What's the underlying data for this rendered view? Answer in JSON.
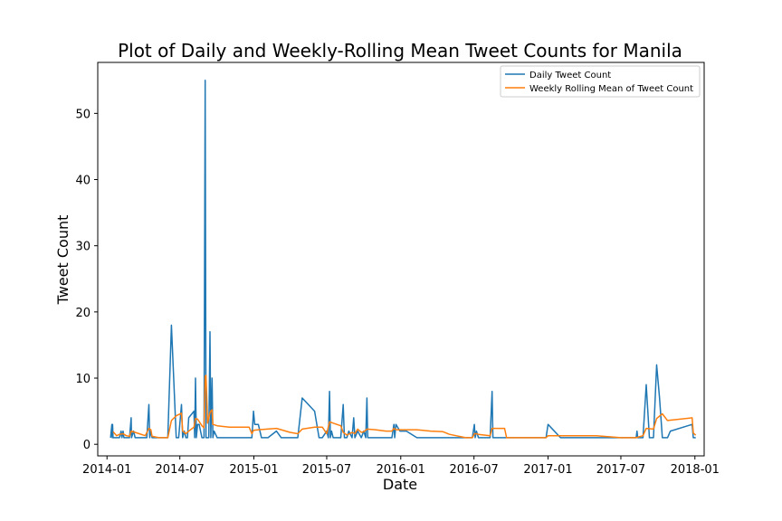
{
  "chart_data": {
    "type": "line",
    "title": "Plot of Daily and Weekly-Rolling Mean Tweet Counts for Manila",
    "xlabel": "Date",
    "ylabel": "Tweet Count",
    "xlim": [
      "2013-12-09",
      "2018-01-24"
    ],
    "ylim": [
      -1.75,
      57.7
    ],
    "x_ticks": [
      "2014-01-01",
      "2014-07-01",
      "2015-01-01",
      "2015-07-01",
      "2016-01-01",
      "2016-07-01",
      "2017-01-01",
      "2017-07-01",
      "2018-01-01"
    ],
    "x_tick_labels": [
      "2014-01",
      "2014-07",
      "2015-01",
      "2015-07",
      "2016-01",
      "2016-07",
      "2017-01",
      "2017-07",
      "2018-01"
    ],
    "y_ticks": [
      0,
      10,
      20,
      30,
      40,
      50
    ],
    "y_tick_labels": [
      "0",
      "10",
      "20",
      "30",
      "40",
      "50"
    ],
    "legend": {
      "placement": "upper right"
    },
    "grid": false,
    "series": [
      {
        "name": "Daily Tweet Count",
        "color": "#1f77b4",
        "points": [
          [
            "2014-01-10",
            1
          ],
          [
            "2014-01-13",
            3
          ],
          [
            "2014-01-14",
            1
          ],
          [
            "2014-01-15",
            3
          ],
          [
            "2014-01-16",
            1
          ],
          [
            "2014-01-25",
            1
          ],
          [
            "2014-02-01",
            1
          ],
          [
            "2014-02-05",
            2
          ],
          [
            "2014-02-07",
            1
          ],
          [
            "2014-02-10",
            2
          ],
          [
            "2014-02-12",
            1
          ],
          [
            "2014-02-18",
            1
          ],
          [
            "2014-02-26",
            1
          ],
          [
            "2014-03-02",
            4
          ],
          [
            "2014-03-03",
            1
          ],
          [
            "2014-03-08",
            2
          ],
          [
            "2014-03-12",
            1
          ],
          [
            "2014-03-22",
            1
          ],
          [
            "2014-04-06",
            1
          ],
          [
            "2014-04-10",
            1
          ],
          [
            "2014-04-15",
            6
          ],
          [
            "2014-04-17",
            1
          ],
          [
            "2014-04-20",
            2
          ],
          [
            "2014-04-23",
            1
          ],
          [
            "2014-05-10",
            1
          ],
          [
            "2014-06-01",
            1
          ],
          [
            "2014-06-10",
            18
          ],
          [
            "2014-06-22",
            1
          ],
          [
            "2014-06-28",
            1
          ],
          [
            "2014-07-05",
            6
          ],
          [
            "2014-07-08",
            1
          ],
          [
            "2014-07-12",
            2
          ],
          [
            "2014-07-16",
            1
          ],
          [
            "2014-07-20",
            1
          ],
          [
            "2014-07-23",
            4
          ],
          [
            "2014-08-05",
            5
          ],
          [
            "2014-08-07",
            1
          ],
          [
            "2014-08-09",
            10
          ],
          [
            "2014-08-11",
            1
          ],
          [
            "2014-08-14",
            3
          ],
          [
            "2014-08-18",
            3
          ],
          [
            "2014-08-25",
            1
          ],
          [
            "2014-08-30",
            1
          ],
          [
            "2014-09-02",
            55
          ],
          [
            "2014-09-04",
            1
          ],
          [
            "2014-09-08",
            1
          ],
          [
            "2014-09-11",
            1
          ],
          [
            "2014-09-14",
            17
          ],
          [
            "2014-09-16",
            1
          ],
          [
            "2014-09-19",
            10
          ],
          [
            "2014-09-21",
            1
          ],
          [
            "2014-09-24",
            2
          ],
          [
            "2014-10-02",
            1
          ],
          [
            "2014-11-01",
            1
          ],
          [
            "2014-12-20",
            1
          ],
          [
            "2014-12-27",
            1
          ],
          [
            "2014-12-31",
            5
          ],
          [
            "2015-01-03",
            3
          ],
          [
            "2015-01-12",
            3
          ],
          [
            "2015-01-20",
            1
          ],
          [
            "2015-02-05",
            1
          ],
          [
            "2015-02-26",
            2
          ],
          [
            "2015-03-10",
            1
          ],
          [
            "2015-04-01",
            1
          ],
          [
            "2015-04-20",
            1
          ],
          [
            "2015-05-01",
            7
          ],
          [
            "2015-06-01",
            5
          ],
          [
            "2015-06-12",
            1
          ],
          [
            "2015-06-20",
            1
          ],
          [
            "2015-07-01",
            2
          ],
          [
            "2015-07-05",
            1
          ],
          [
            "2015-07-08",
            8
          ],
          [
            "2015-07-10",
            1
          ],
          [
            "2015-07-13",
            2
          ],
          [
            "2015-07-17",
            1
          ],
          [
            "2015-08-05",
            1
          ],
          [
            "2015-08-11",
            6
          ],
          [
            "2015-08-14",
            1
          ],
          [
            "2015-08-20",
            1
          ],
          [
            "2015-08-25",
            2
          ],
          [
            "2015-09-02",
            1
          ],
          [
            "2015-09-06",
            4
          ],
          [
            "2015-09-09",
            1
          ],
          [
            "2015-09-16",
            2
          ],
          [
            "2015-09-25",
            1
          ],
          [
            "2015-10-01",
            2
          ],
          [
            "2015-10-06",
            1
          ],
          [
            "2015-10-09",
            7
          ],
          [
            "2015-10-11",
            1
          ],
          [
            "2015-10-30",
            1
          ],
          [
            "2015-11-25",
            1
          ],
          [
            "2015-12-10",
            1
          ],
          [
            "2015-12-15",
            3
          ],
          [
            "2015-12-17",
            1
          ],
          [
            "2015-12-20",
            3
          ],
          [
            "2015-12-30",
            2
          ],
          [
            "2016-01-15",
            2
          ],
          [
            "2016-02-10",
            1
          ],
          [
            "2016-03-15",
            1
          ],
          [
            "2016-05-01",
            1
          ],
          [
            "2016-06-10",
            1
          ],
          [
            "2016-06-27",
            1
          ],
          [
            "2016-07-02",
            3
          ],
          [
            "2016-07-04",
            1
          ],
          [
            "2016-07-07",
            2
          ],
          [
            "2016-07-12",
            1
          ],
          [
            "2016-08-10",
            1
          ],
          [
            "2016-08-15",
            8
          ],
          [
            "2016-08-17",
            1
          ],
          [
            "2016-08-25",
            1
          ],
          [
            "2016-11-01",
            1
          ],
          [
            "2016-12-01",
            1
          ],
          [
            "2016-12-27",
            1
          ],
          [
            "2017-01-01",
            3
          ],
          [
            "2017-02-01",
            1
          ],
          [
            "2017-03-01",
            1
          ],
          [
            "2017-05-01",
            1
          ],
          [
            "2017-07-01",
            1
          ],
          [
            "2017-08-08",
            1
          ],
          [
            "2017-08-10",
            2
          ],
          [
            "2017-08-12",
            1
          ],
          [
            "2017-08-25",
            1
          ],
          [
            "2017-09-02",
            9
          ],
          [
            "2017-09-10",
            1
          ],
          [
            "2017-09-20",
            1
          ],
          [
            "2017-09-28",
            12
          ],
          [
            "2017-10-05",
            7
          ],
          [
            "2017-10-12",
            1
          ],
          [
            "2017-10-25",
            1
          ],
          [
            "2017-11-01",
            2
          ],
          [
            "2017-12-25",
            3
          ],
          [
            "2017-12-28",
            1
          ],
          [
            "2018-01-03",
            1
          ]
        ]
      },
      {
        "name": "Weekly Rolling Mean of Tweet Count",
        "color": "#ff7f0e",
        "points": [
          [
            "2014-01-16",
            1.9
          ],
          [
            "2014-01-25",
            1.3
          ],
          [
            "2014-02-01",
            1.5
          ],
          [
            "2014-02-10",
            1.6
          ],
          [
            "2014-02-18",
            1.3
          ],
          [
            "2014-02-26",
            1.2
          ],
          [
            "2014-03-02",
            2.0
          ],
          [
            "2014-03-12",
            1.8
          ],
          [
            "2014-03-22",
            1.6
          ],
          [
            "2014-04-06",
            1.3
          ],
          [
            "2014-04-15",
            2.4
          ],
          [
            "2014-04-20",
            2.2
          ],
          [
            "2014-04-23",
            1.2
          ],
          [
            "2014-05-10",
            1.0
          ],
          [
            "2014-06-01",
            1.0
          ],
          [
            "2014-06-10",
            3.6
          ],
          [
            "2014-06-22",
            4.3
          ],
          [
            "2014-07-05",
            4.7
          ],
          [
            "2014-07-08",
            2.0
          ],
          [
            "2014-07-16",
            1.6
          ],
          [
            "2014-07-23",
            2.0
          ],
          [
            "2014-08-05",
            2.6
          ],
          [
            "2014-08-09",
            3.9
          ],
          [
            "2014-08-14",
            3.8
          ],
          [
            "2014-08-25",
            2.8
          ],
          [
            "2014-08-30",
            2.5
          ],
          [
            "2014-09-02",
            10.3
          ],
          [
            "2014-09-04",
            10.4
          ],
          [
            "2014-09-08",
            3.2
          ],
          [
            "2014-09-14",
            4.8
          ],
          [
            "2014-09-16",
            5.0
          ],
          [
            "2014-09-19",
            5.2
          ],
          [
            "2014-09-21",
            3.0
          ],
          [
            "2014-10-02",
            2.8
          ],
          [
            "2014-11-01",
            2.6
          ],
          [
            "2014-12-20",
            2.6
          ],
          [
            "2014-12-27",
            1.6
          ],
          [
            "2014-12-31",
            2.1
          ],
          [
            "2015-01-12",
            2.2
          ],
          [
            "2015-02-26",
            2.4
          ],
          [
            "2015-03-10",
            2.2
          ],
          [
            "2015-04-01",
            1.8
          ],
          [
            "2015-04-20",
            1.6
          ],
          [
            "2015-05-01",
            2.3
          ],
          [
            "2015-06-01",
            2.6
          ],
          [
            "2015-06-20",
            2.6
          ],
          [
            "2015-07-01",
            1.6
          ],
          [
            "2015-07-08",
            3.4
          ],
          [
            "2015-07-17",
            3.2
          ],
          [
            "2015-08-05",
            2.8
          ],
          [
            "2015-08-11",
            1.8
          ],
          [
            "2015-08-20",
            1.4
          ],
          [
            "2015-09-02",
            1.8
          ],
          [
            "2015-09-09",
            1.6
          ],
          [
            "2015-09-16",
            2.3
          ],
          [
            "2015-09-25",
            1.8
          ],
          [
            "2015-10-01",
            1.9
          ],
          [
            "2015-10-09",
            2.3
          ],
          [
            "2015-10-30",
            2.2
          ],
          [
            "2015-11-25",
            2.0
          ],
          [
            "2015-12-10",
            2.0
          ],
          [
            "2015-12-15",
            2.4
          ],
          [
            "2015-12-20",
            2.2
          ],
          [
            "2016-01-15",
            2.2
          ],
          [
            "2016-02-10",
            2.2
          ],
          [
            "2016-03-15",
            2.0
          ],
          [
            "2016-04-15",
            1.9
          ],
          [
            "2016-05-01",
            1.5
          ],
          [
            "2016-06-10",
            1.0
          ],
          [
            "2016-06-27",
            1.0
          ],
          [
            "2016-07-02",
            1.6
          ],
          [
            "2016-07-07",
            1.6
          ],
          [
            "2016-07-12",
            1.5
          ],
          [
            "2016-08-10",
            1.3
          ],
          [
            "2016-08-15",
            2.4
          ],
          [
            "2016-09-15",
            2.4
          ],
          [
            "2016-09-20",
            1.0
          ],
          [
            "2016-11-01",
            1.0
          ],
          [
            "2016-12-27",
            1.0
          ],
          [
            "2017-01-01",
            1.3
          ],
          [
            "2017-03-01",
            1.3
          ],
          [
            "2017-05-01",
            1.3
          ],
          [
            "2017-07-01",
            1.0
          ],
          [
            "2017-08-08",
            1.0
          ],
          [
            "2017-08-25",
            1.3
          ],
          [
            "2017-09-02",
            2.4
          ],
          [
            "2017-09-20",
            2.3
          ],
          [
            "2017-09-28",
            3.9
          ],
          [
            "2017-10-12",
            4.6
          ],
          [
            "2017-10-25",
            3.6
          ],
          [
            "2017-12-25",
            4.0
          ],
          [
            "2017-12-28",
            1.7
          ],
          [
            "2018-01-03",
            1.4
          ]
        ]
      }
    ]
  }
}
